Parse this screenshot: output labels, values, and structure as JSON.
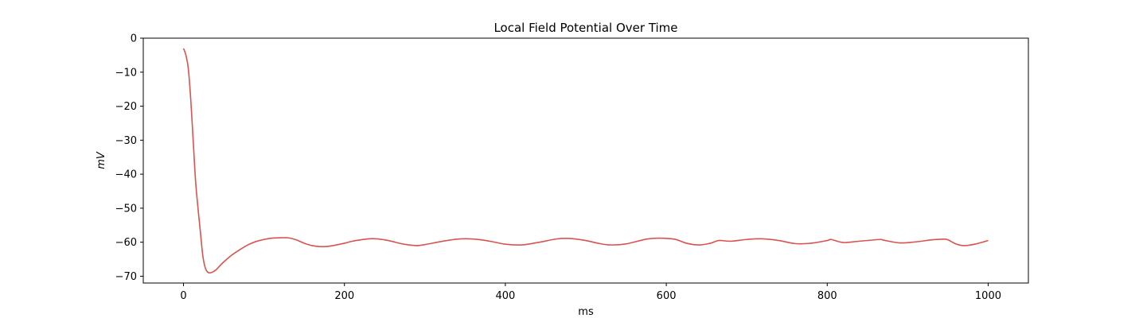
{
  "chart_data": {
    "type": "line",
    "title": "Local Field Potential Over Time",
    "xlabel": "ms",
    "ylabel": "mV",
    "xlim": [
      -50,
      1050
    ],
    "ylim": [
      -72,
      0
    ],
    "xticks": [
      0,
      200,
      400,
      600,
      800,
      1000
    ],
    "yticks": [
      0,
      -10,
      -20,
      -30,
      -40,
      -50,
      -60,
      -70
    ],
    "xtick_labels": [
      "0",
      "200",
      "400",
      "600",
      "800",
      "1000"
    ],
    "ytick_labels": [
      "0",
      "−10",
      "−20",
      "−30",
      "−40",
      "−50",
      "−60",
      "−70"
    ],
    "grid": false,
    "series": [
      {
        "color": "#d9534f",
        "x": [
          0,
          3,
          6,
          9,
          12,
          15,
          18,
          21,
          24,
          27,
          30,
          33,
          36,
          40,
          45,
          50,
          60,
          70,
          80,
          90,
          100,
          110,
          120,
          130,
          140,
          150,
          160,
          170,
          180,
          190,
          200,
          210,
          220,
          230,
          240,
          250,
          260,
          270,
          280,
          290,
          300,
          320,
          340,
          355,
          370,
          385,
          400,
          420,
          440,
          465,
          480,
          500,
          515,
          530,
          550,
          575,
          590,
          610,
          625,
          640,
          655,
          665,
          680,
          700,
          720,
          740,
          760,
          780,
          800,
          805,
          820,
          840,
          865,
          870,
          890,
          910,
          930,
          945,
          950,
          960,
          970,
          985,
          1000
        ],
        "y": [
          -3,
          -5,
          -9,
          -18,
          -30,
          -42,
          -50,
          -57,
          -64,
          -67.5,
          -68.8,
          -69,
          -68.8,
          -68.2,
          -67,
          -65.8,
          -63.8,
          -62.2,
          -60.8,
          -59.8,
          -59.2,
          -58.8,
          -58.7,
          -58.7,
          -59.3,
          -60.3,
          -61,
          -61.3,
          -61.2,
          -60.8,
          -60.3,
          -59.7,
          -59.3,
          -59,
          -59,
          -59.3,
          -59.8,
          -60.4,
          -60.8,
          -61,
          -60.7,
          -59.8,
          -59.1,
          -59,
          -59.3,
          -59.9,
          -60.6,
          -60.8,
          -60.1,
          -59,
          -58.9,
          -59.5,
          -60.3,
          -60.8,
          -60.5,
          -59.1,
          -58.8,
          -59.1,
          -60.3,
          -60.8,
          -60.3,
          -59.5,
          -59.7,
          -59.2,
          -59,
          -59.5,
          -60.4,
          -60.3,
          -59.5,
          -59.2,
          -60.1,
          -59.7,
          -59.2,
          -59.4,
          -60.2,
          -59.9,
          -59.3,
          -59.1,
          -59.3,
          -60.5,
          -61,
          -60.5,
          -59.5
        ]
      }
    ]
  }
}
